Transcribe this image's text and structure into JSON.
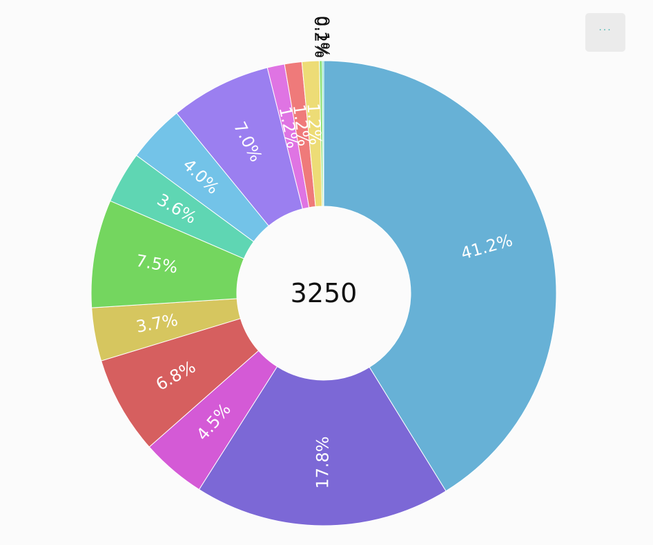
{
  "menu": {
    "icon": "more-horizontal-icon",
    "label": "···"
  },
  "chart_data": {
    "type": "pie",
    "hole": true,
    "center_text": "3250",
    "values": [
      41.2,
      17.8,
      4.5,
      6.8,
      3.7,
      7.5,
      3.6,
      4.0,
      7.0,
      1.2,
      1.2,
      1.2,
      0.2,
      0.1
    ],
    "labels": [
      "41.2%",
      "17.8%",
      "4.5%",
      "6.8%",
      "3.7%",
      "7.5%",
      "3.6%",
      "4.0%",
      "7.0%",
      "1.2%",
      "1.2%",
      "1.2%",
      "0.2%",
      "0.1%"
    ],
    "colors": [
      "#67b1d6",
      "#7c68d6",
      "#d45ad6",
      "#d65f5f",
      "#d6c65f",
      "#74d65f",
      "#5fd6b3",
      "#73c3e8",
      "#9b7ff0",
      "#df74e3",
      "#ef7a7a",
      "#eddc76",
      "#8ee27a",
      "#6ee0c2"
    ],
    "direction": "clockwise",
    "start_angle": "12 o'clock",
    "legend": "none"
  }
}
